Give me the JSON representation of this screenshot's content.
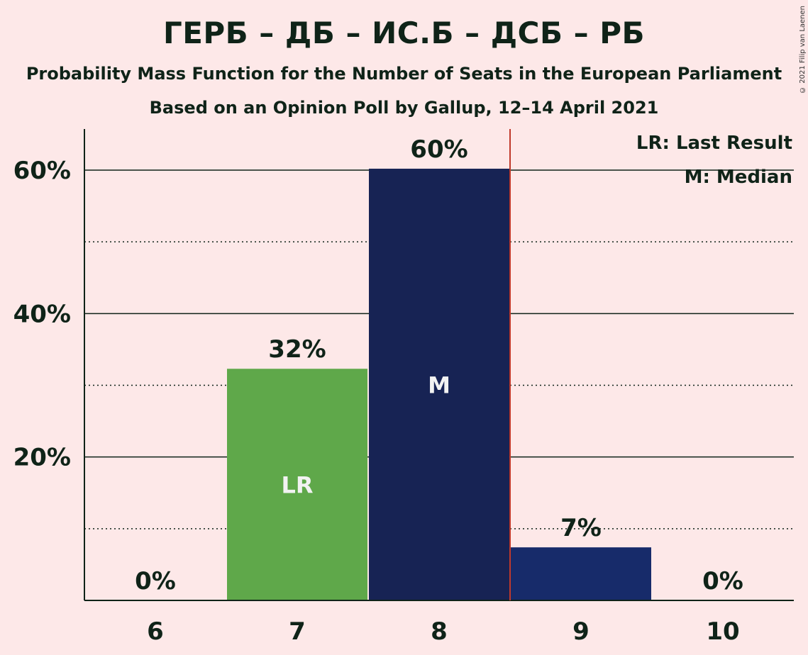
{
  "header": {
    "title": "ГЕРБ – ДБ – ИС.Б – ДСБ – РБ",
    "subtitle": "Probability Mass Function for the Number of Seats in the European Parliament",
    "subtitle2": "Based on an Opinion Poll by Gallup, 12–14 April 2021",
    "copyright": "© 2021 Filip van Laenen"
  },
  "chart_data": {
    "type": "bar",
    "categories": [
      "6",
      "7",
      "8",
      "9",
      "10"
    ],
    "values": [
      0,
      32.3,
      60.2,
      7.4,
      0
    ],
    "data_labels": [
      "0%",
      "32%",
      "60%",
      "7%",
      "0%"
    ],
    "bar_marks": [
      "",
      "LR",
      "M",
      "",
      ""
    ],
    "colors": [
      "#5FA84A",
      "#5FA84A",
      "#172354",
      "#172B6A",
      "#172B6A"
    ],
    "ylim": [
      0,
      66
    ],
    "yticks": [
      {
        "value": 20,
        "label": "20%"
      },
      {
        "value": 40,
        "label": "40%"
      },
      {
        "value": 60,
        "label": "60%"
      }
    ],
    "minor_gridlines": [
      10,
      30,
      50
    ],
    "last_result_line_after": "8",
    "last_result_line_color": "#C0392B",
    "legend": [
      "LR: Last Result",
      "M: Median"
    ],
    "legend_position": "top-right",
    "grid": true
  }
}
